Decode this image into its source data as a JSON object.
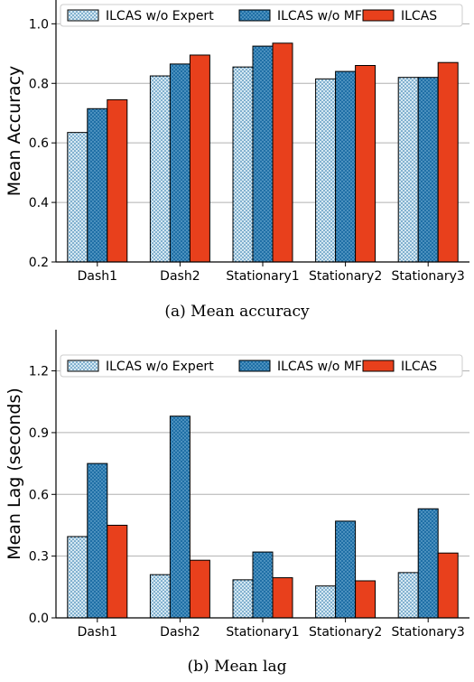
{
  "colors": {
    "w_o_expert": "#d5e8f2",
    "w_o_mf": "#1f6fa6",
    "ilcas": "#e8401c",
    "grid": "#b0b0b0",
    "axis": "#000000"
  },
  "captions": [
    "(a)  Mean accuracy",
    "(b)  Mean lag"
  ],
  "chart_data": [
    {
      "type": "bar",
      "title": "",
      "xlabel": "",
      "ylabel": "Mean Accuracy",
      "categories": [
        "Dash1",
        "Dash2",
        "Stationary1",
        "Stationary2",
        "Stationary3"
      ],
      "ylim": [
        0.2,
        1.08
      ],
      "yticks": [
        0.2,
        0.4,
        0.6,
        0.8,
        1.0
      ],
      "ytick_labels": [
        "0.2",
        "0.4",
        "0.6",
        "0.8",
        "1.0"
      ],
      "grid": true,
      "legend": "top",
      "series": [
        {
          "name": "ILCAS w/o Expert",
          "values": [
            0.635,
            0.825,
            0.855,
            0.815,
            0.82
          ]
        },
        {
          "name": "ILCAS w/o MF",
          "values": [
            0.715,
            0.865,
            0.925,
            0.84,
            0.82
          ]
        },
        {
          "name": "ILCAS",
          "values": [
            0.745,
            0.895,
            0.935,
            0.86,
            0.87
          ]
        }
      ]
    },
    {
      "type": "bar",
      "title": "",
      "xlabel": "",
      "ylabel": "Mean Lag (seconds)",
      "categories": [
        "Dash1",
        "Dash2",
        "Stationary1",
        "Stationary2",
        "Stationary3"
      ],
      "ylim": [
        0,
        1.4
      ],
      "yticks": [
        0,
        0.3,
        0.6,
        0.9,
        1.2
      ],
      "ytick_labels": [
        "0.0",
        "0.3",
        "0.6",
        "0.9",
        "1.2"
      ],
      "grid": true,
      "legend": "top",
      "series": [
        {
          "name": "ILCAS w/o Expert",
          "values": [
            0.395,
            0.21,
            0.185,
            0.155,
            0.22
          ]
        },
        {
          "name": "ILCAS w/o MF",
          "values": [
            0.75,
            0.98,
            0.32,
            0.47,
            0.53
          ]
        },
        {
          "name": "ILCAS",
          "values": [
            0.45,
            0.28,
            0.195,
            0.18,
            0.315
          ]
        }
      ]
    }
  ]
}
